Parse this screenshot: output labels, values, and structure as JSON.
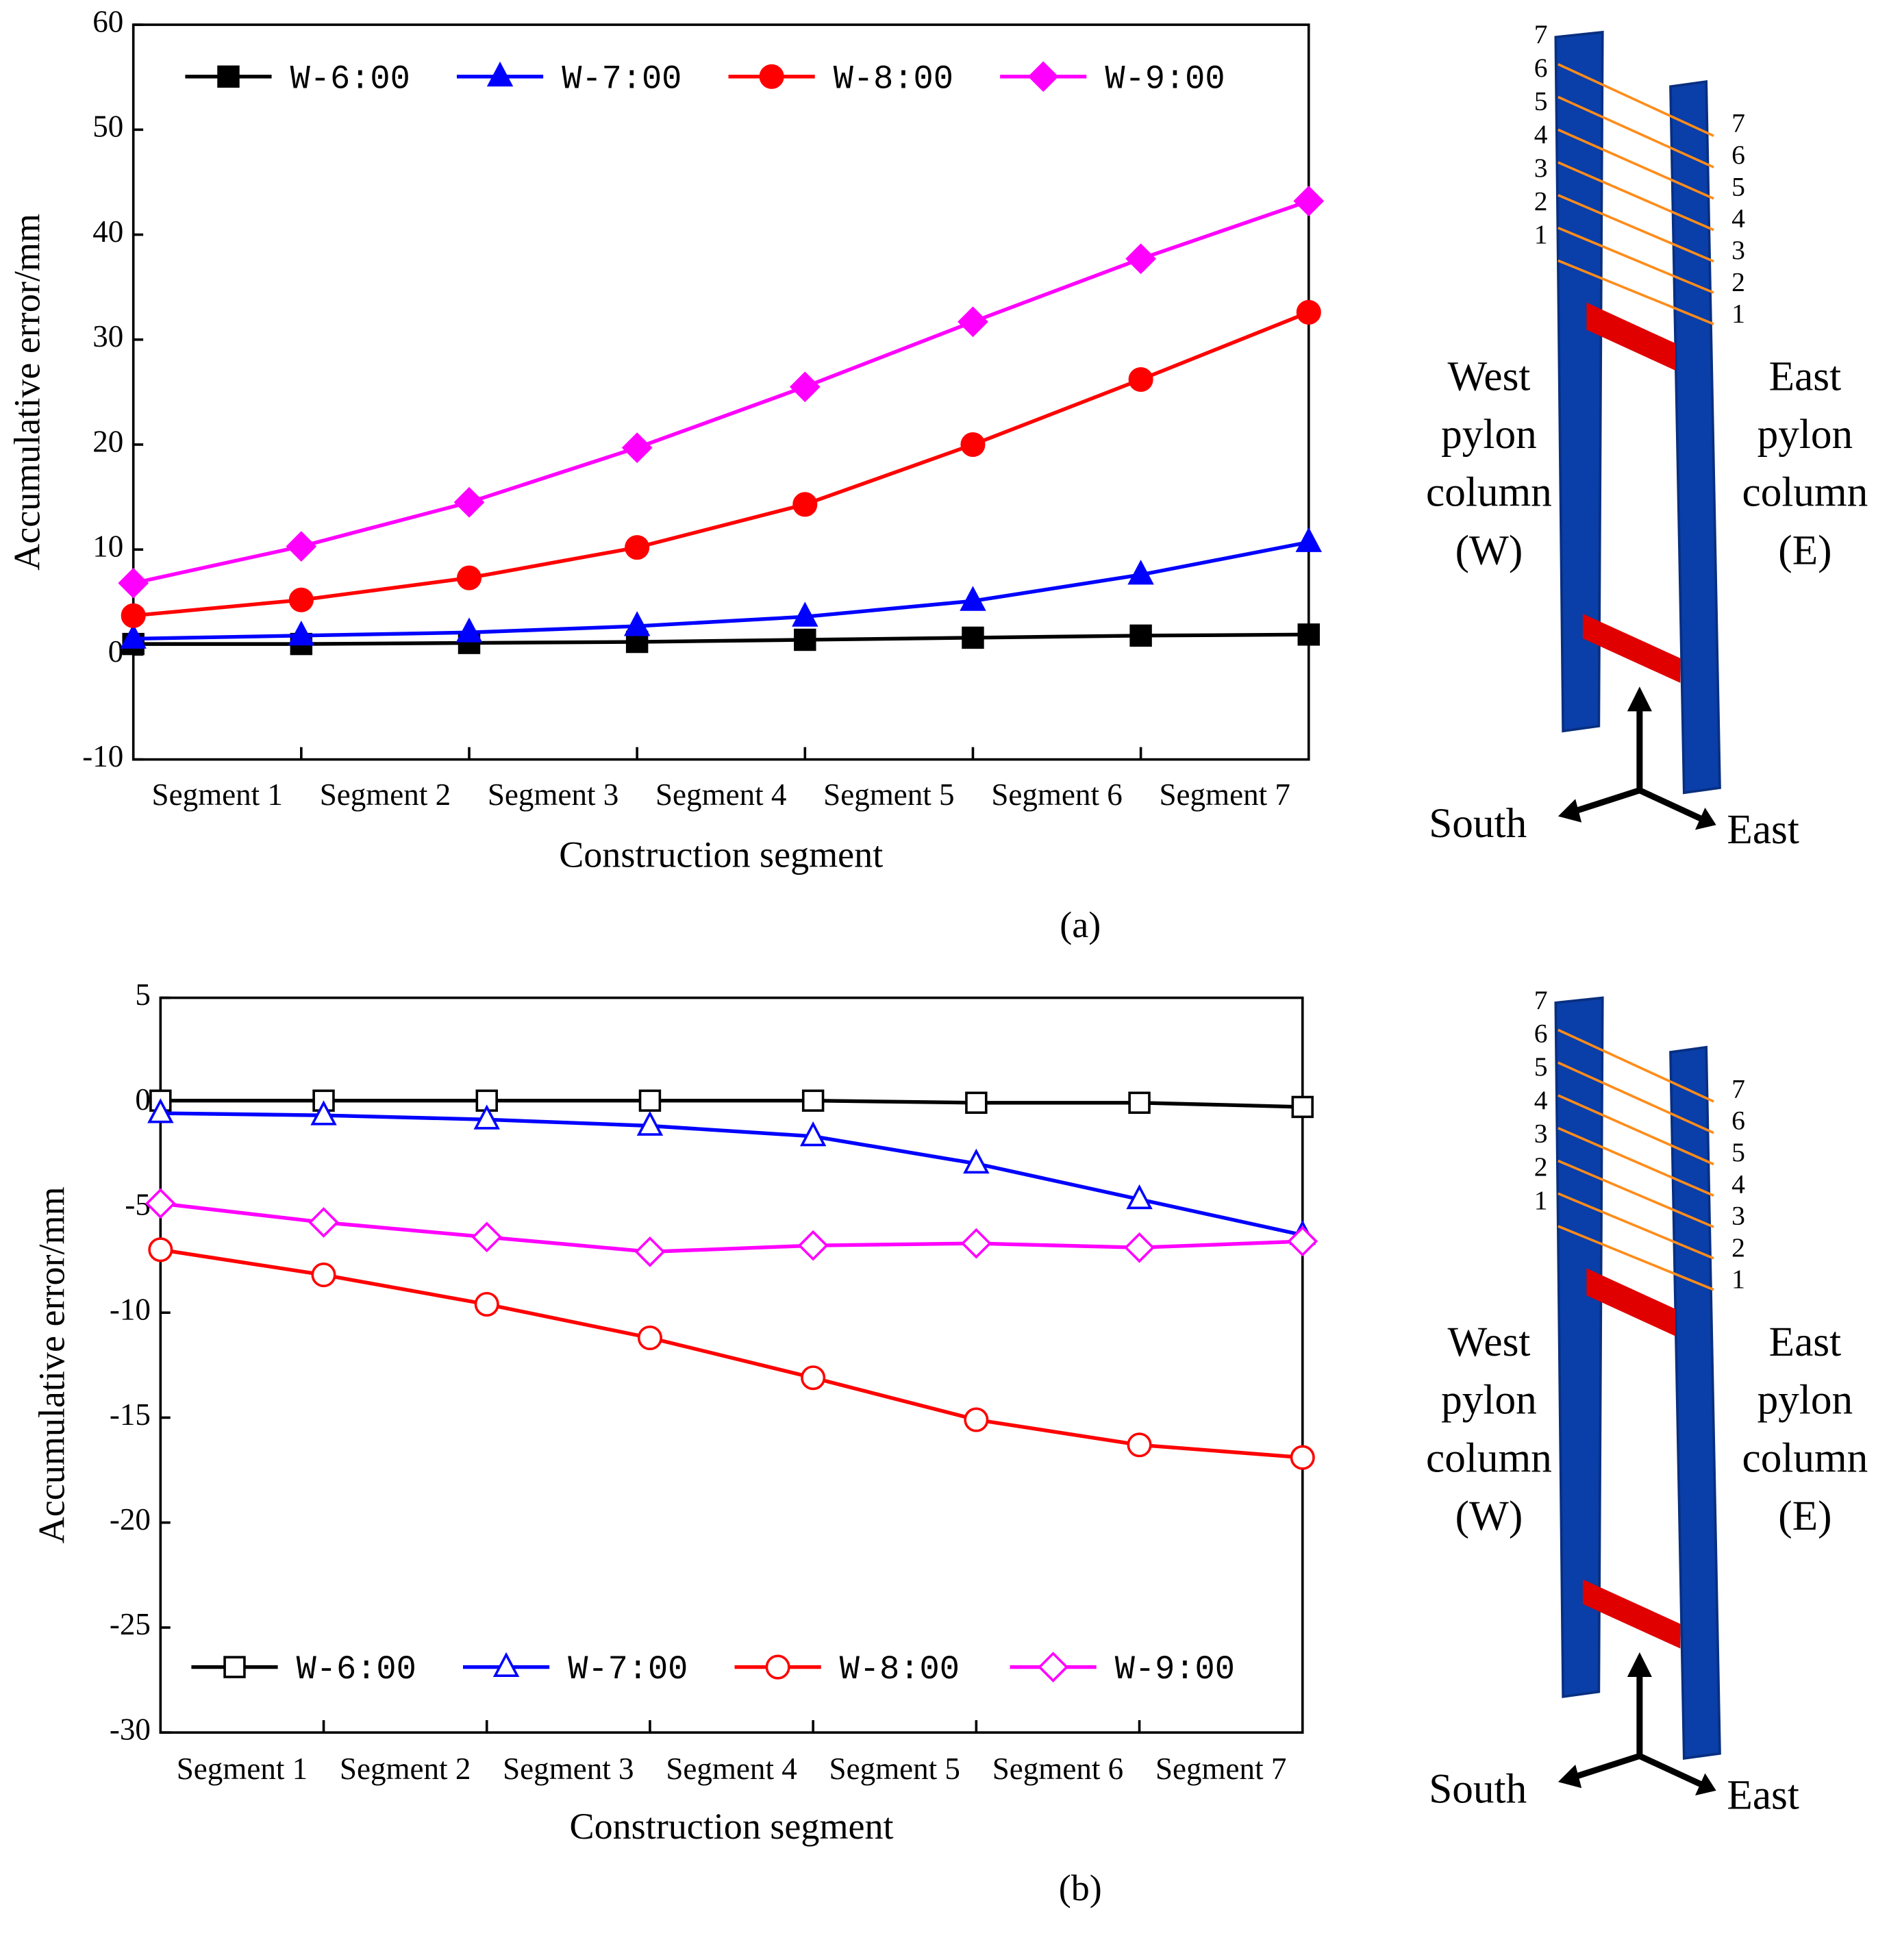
{
  "chart_data": [
    {
      "type": "line",
      "panel_label": "(a)",
      "x_label": "Construction segment",
      "y_label": "Accumulative error/mm",
      "x": [
        0,
        1,
        2,
        3,
        4,
        5,
        6,
        7
      ],
      "xlim": [
        0,
        7
      ],
      "xticks": [
        1,
        2,
        3,
        4,
        5,
        6
      ],
      "segment_labels": [
        "Segment 1",
        "Segment 2",
        "Segment 3",
        "Segment 4",
        "Segment 5",
        "Segment 6",
        "Segment 7"
      ],
      "ylim": [
        -10,
        60
      ],
      "yticks": [
        -10,
        0,
        10,
        20,
        30,
        40,
        50,
        60
      ],
      "legend": "upper left",
      "marker_fill": "filled",
      "series": [
        {
          "name": "W-6:00",
          "color": "#000000",
          "marker": "square",
          "values": [
            1.0,
            1.0,
            1.1,
            1.2,
            1.4,
            1.6,
            1.8,
            1.9
          ]
        },
        {
          "name": "W-7:00",
          "color": "#0000ff",
          "marker": "triangle",
          "values": [
            1.5,
            1.8,
            2.1,
            2.7,
            3.6,
            5.1,
            7.6,
            10.7
          ]
        },
        {
          "name": "W-8:00",
          "color": "#ff0000",
          "marker": "circle",
          "values": [
            3.7,
            5.2,
            7.3,
            10.2,
            14.3,
            20.0,
            26.2,
            32.6
          ]
        },
        {
          "name": "W-9:00",
          "color": "#ff00ff",
          "marker": "diamond",
          "values": [
            6.8,
            10.3,
            14.5,
            19.7,
            25.5,
            31.7,
            37.7,
            43.2
          ]
        }
      ],
      "diagram": {
        "west_numbers": [
          "1",
          "2",
          "3",
          "4",
          "5",
          "6",
          "7"
        ],
        "east_numbers": [
          "1",
          "2",
          "3",
          "4",
          "5",
          "6",
          "7"
        ],
        "west_label": [
          "West",
          "pylon",
          "column",
          "(W)"
        ],
        "east_label": [
          "East",
          "pylon",
          "column",
          "(E)"
        ],
        "axes": [
          "South",
          "East"
        ]
      }
    },
    {
      "type": "line",
      "panel_label": "(b)",
      "x_label": "Construction segment",
      "y_label": "Accumulative error/mm",
      "x": [
        0,
        1,
        2,
        3,
        4,
        5,
        6,
        7
      ],
      "xlim": [
        0,
        7
      ],
      "xticks": [
        1,
        2,
        3,
        4,
        5,
        6
      ],
      "segment_labels": [
        "Segment 1",
        "Segment 2",
        "Segment 3",
        "Segment 4",
        "Segment 5",
        "Segment 6",
        "Segment 7"
      ],
      "ylim": [
        -30,
        5
      ],
      "yticks": [
        -30,
        -25,
        -20,
        -15,
        -10,
        -5,
        0,
        5
      ],
      "legend": "lower left",
      "marker_fill": "open",
      "series": [
        {
          "name": "W-6:00",
          "color": "#000000",
          "marker": "square",
          "values": [
            0.1,
            0.1,
            0.1,
            0.1,
            0.1,
            0.0,
            0.0,
            -0.2
          ]
        },
        {
          "name": "W-7:00",
          "color": "#0000ff",
          "marker": "triangle",
          "values": [
            -0.5,
            -0.6,
            -0.8,
            -1.1,
            -1.6,
            -2.9,
            -4.6,
            -6.3
          ]
        },
        {
          "name": "W-8:00",
          "color": "#ff0000",
          "marker": "circle",
          "values": [
            -7.0,
            -8.2,
            -9.6,
            -11.2,
            -13.1,
            -15.1,
            -16.3,
            -16.9
          ]
        },
        {
          "name": "W-9:00",
          "color": "#ff00ff",
          "marker": "diamond",
          "values": [
            -4.8,
            -5.7,
            -6.4,
            -7.1,
            -6.8,
            -6.7,
            -6.9,
            -6.6
          ]
        }
      ],
      "diagram": {
        "west_numbers": [
          "1",
          "2",
          "3",
          "4",
          "5",
          "6",
          "7"
        ],
        "east_numbers": [
          "1",
          "2",
          "3",
          "4",
          "5",
          "6",
          "7"
        ],
        "west_label": [
          "West",
          "pylon",
          "column",
          "(W)"
        ],
        "east_label": [
          "East",
          "pylon",
          "column",
          "(E)"
        ],
        "axes": [
          "South",
          "East"
        ]
      }
    }
  ]
}
